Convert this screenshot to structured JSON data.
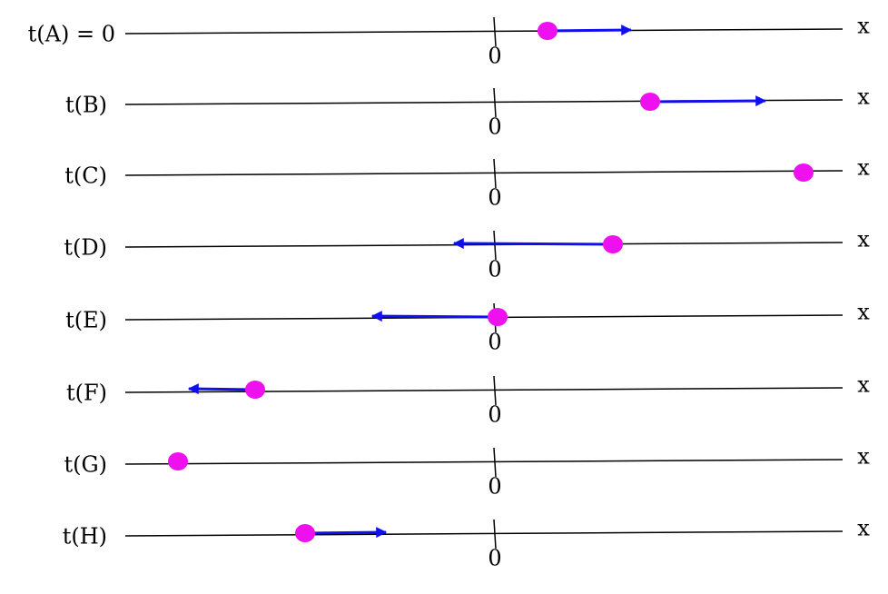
{
  "rows": [
    {
      "label": "t(A) = 0",
      "zero": "0",
      "axis": "x"
    },
    {
      "label": "t(B)",
      "zero": "0",
      "axis": "x"
    },
    {
      "label": "t(C)",
      "zero": "0",
      "axis": "x"
    },
    {
      "label": "t(D)",
      "zero": "0",
      "axis": "x"
    },
    {
      "label": "t(E)",
      "zero": "0",
      "axis": "x"
    },
    {
      "label": "t(F)",
      "zero": "0",
      "axis": "x"
    },
    {
      "label": "t(G)",
      "zero": "0",
      "axis": "x"
    },
    {
      "label": "t(H)",
      "zero": "0",
      "axis": "x"
    }
  ]
}
